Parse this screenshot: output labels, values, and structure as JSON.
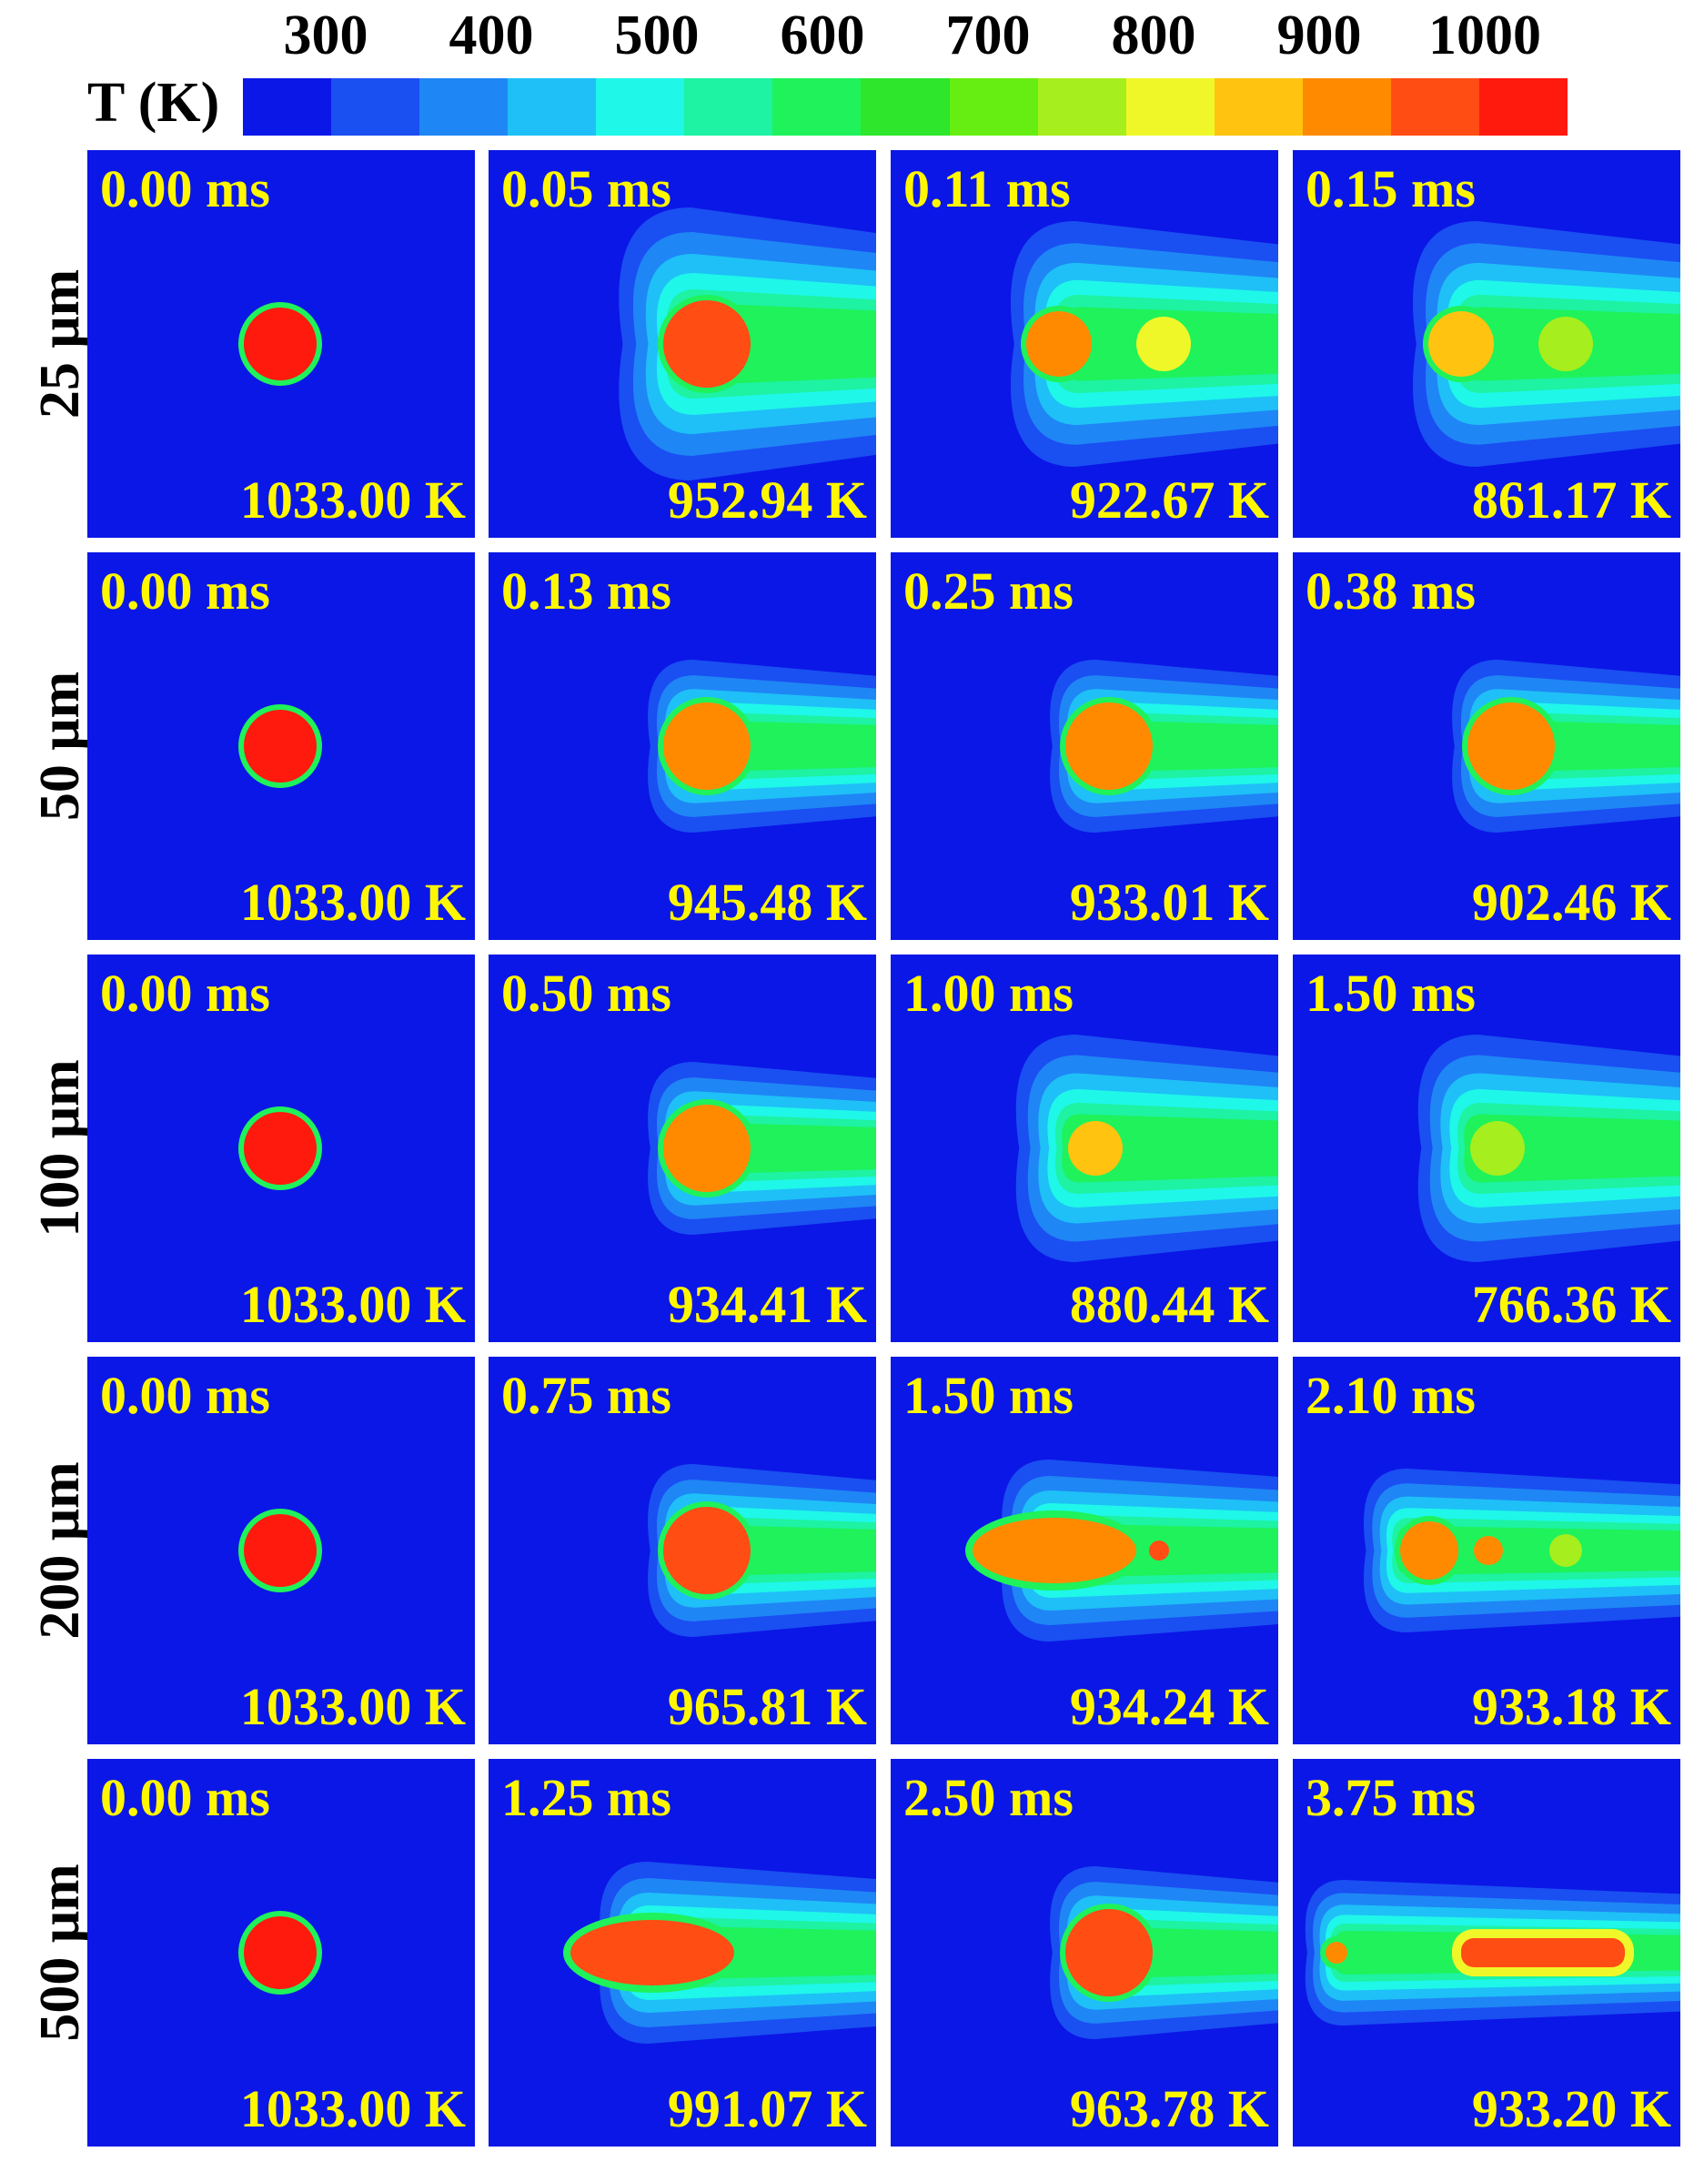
{
  "colorbar": {
    "label": "T (K)",
    "ticks": [
      "300",
      "400",
      "500",
      "600",
      "700",
      "800",
      "900",
      "1000"
    ],
    "tick_values": [
      300,
      400,
      500,
      600,
      700,
      800,
      900,
      1000
    ],
    "range": [
      250,
      1050
    ],
    "colors": [
      "#0b17e6",
      "#1a4ff2",
      "#1f86f5",
      "#1ec0f7",
      "#1ff7e9",
      "#1ef2a3",
      "#1ff25a",
      "#2ee62b",
      "#66ee12",
      "#a6ee1d",
      "#f0f729",
      "#ffc310",
      "#ff8a00",
      "#ff4d14",
      "#ff1a0d"
    ]
  },
  "row_labels": [
    "25 μm",
    "50 μm",
    "100 μm",
    "200 μm",
    "500 μm"
  ],
  "panels": [
    [
      {
        "time": "0.00 ms",
        "temp": "1033.00 K",
        "kind": "initial"
      },
      {
        "time": "0.05 ms",
        "temp": "952.94 K",
        "kind": "single",
        "core_color": "#ff4d14"
      },
      {
        "time": "0.11 ms",
        "temp": "922.67 K",
        "kind": "double",
        "core_color": "#ff8a00",
        "second_color": "#f0f729"
      },
      {
        "time": "0.15 ms",
        "temp": "861.17 K",
        "kind": "double",
        "core_color": "#ffc310",
        "second_color": "#a6ee1d"
      }
    ],
    [
      {
        "time": "0.00 ms",
        "temp": "1033.00 K",
        "kind": "initial"
      },
      {
        "time": "0.13 ms",
        "temp": "945.48 K",
        "kind": "single",
        "core_color": "#ff8a00"
      },
      {
        "time": "0.25 ms",
        "temp": "933.01 K",
        "kind": "single",
        "core_color": "#ff8a00"
      },
      {
        "time": "0.38 ms",
        "temp": "902.46 K",
        "kind": "single",
        "core_color": "#ff8a00"
      }
    ],
    [
      {
        "time": "0.00 ms",
        "temp": "1033.00 K",
        "kind": "initial"
      },
      {
        "time": "0.50 ms",
        "temp": "934.41 K",
        "kind": "single",
        "core_color": "#ff8a00"
      },
      {
        "time": "1.00 ms",
        "temp": "880.44 K",
        "kind": "small",
        "core_color": "#ffc310"
      },
      {
        "time": "1.50 ms",
        "temp": "766.36 K",
        "kind": "small",
        "core_color": "#a6ee1d"
      }
    ],
    [
      {
        "time": "0.00 ms",
        "temp": "1033.00 K",
        "kind": "initial"
      },
      {
        "time": "0.75 ms",
        "temp": "965.81 K",
        "kind": "single",
        "core_color": "#ff4d14"
      },
      {
        "time": "1.50 ms",
        "temp": "934.24 K",
        "kind": "elongated",
        "core_color": "#ff8a00"
      },
      {
        "time": "2.10 ms",
        "temp": "933.18 K",
        "kind": "fragmented",
        "core_color": "#ff8a00"
      }
    ],
    [
      {
        "time": "0.00 ms",
        "temp": "1033.00 K",
        "kind": "initial"
      },
      {
        "time": "1.25 ms",
        "temp": "991.07 K",
        "kind": "elongated",
        "core_color": "#ff4d14"
      },
      {
        "time": "2.50 ms",
        "temp": "963.78 K",
        "kind": "single",
        "core_color": "#ff4d14"
      },
      {
        "time": "3.75 ms",
        "temp": "933.20 K",
        "kind": "bar",
        "core_color": "#ff4d14"
      }
    ]
  ]
}
